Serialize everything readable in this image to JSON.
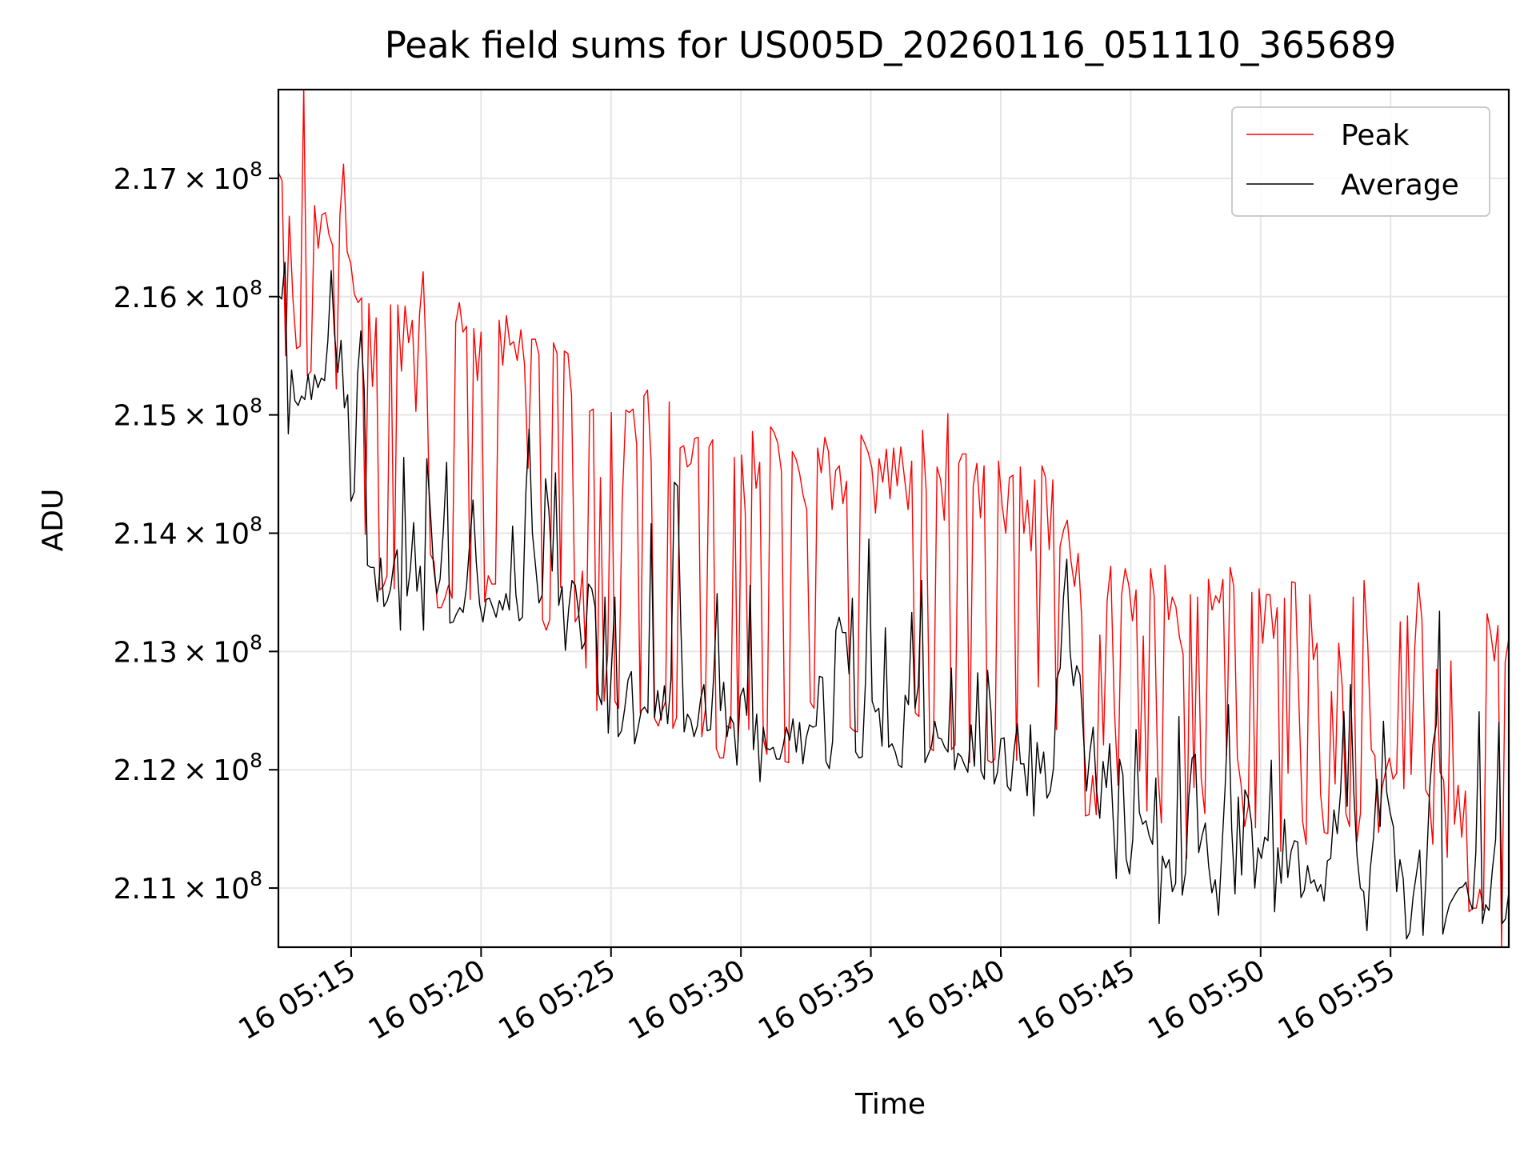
{
  "chart_data": {
    "type": "line",
    "title": "Peak field sums for US005D_20260116_051110_365689",
    "xlabel": "Time",
    "ylabel": "ADU",
    "x_start_minutes": 12.2,
    "x_end_minutes": 59.55,
    "xlim_minutes": [
      12.2,
      59.55
    ],
    "ylim": [
      210500000,
      217750000
    ],
    "y_ticks": [
      {
        "value": 211000000,
        "mantissa": "2.11",
        "exp": "8"
      },
      {
        "value": 212000000,
        "mantissa": "2.12",
        "exp": "8"
      },
      {
        "value": 213000000,
        "mantissa": "2.13",
        "exp": "8"
      },
      {
        "value": 214000000,
        "mantissa": "2.14",
        "exp": "8"
      },
      {
        "value": 215000000,
        "mantissa": "2.15",
        "exp": "8"
      },
      {
        "value": 216000000,
        "mantissa": "2.16",
        "exp": "8"
      },
      {
        "value": 217000000,
        "mantissa": "2.17",
        "exp": "8"
      }
    ],
    "x_ticks": [
      {
        "minutes": 15,
        "label": "16 05:15"
      },
      {
        "minutes": 20,
        "label": "16 05:20"
      },
      {
        "minutes": 25,
        "label": "16 05:25"
      },
      {
        "minutes": 30,
        "label": "16 05:30"
      },
      {
        "minutes": 35,
        "label": "16 05:35"
      },
      {
        "minutes": 40,
        "label": "16 05:40"
      },
      {
        "minutes": 45,
        "label": "16 05:45"
      },
      {
        "minutes": 50,
        "label": "16 05:50"
      },
      {
        "minutes": 55,
        "label": "16 05:55"
      }
    ],
    "legend_position": "top-right",
    "series": [
      {
        "name": "Peak",
        "color": "#ff0000",
        "values": [
          217.05,
          216.98,
          215.5,
          216.68,
          215.99,
          215.56,
          215.58,
          217.77,
          215.33,
          215.37,
          216.77,
          216.41,
          216.69,
          216.71,
          216.52,
          216.43,
          215.22,
          216.69,
          217.12,
          216.38,
          216.28,
          216.02,
          215.95,
          215.99,
          213.99,
          215.94,
          215.24,
          215.82,
          213.52,
          213.55,
          213.64,
          215.93,
          213.53,
          215.93,
          215.37,
          215.92,
          215.61,
          215.8,
          215.03,
          215.85,
          216.21,
          215.34,
          213.82,
          213.76,
          213.37,
          213.37,
          213.45,
          213.56,
          213.45,
          215.78,
          215.95,
          215.7,
          215.75,
          213.44,
          215.73,
          215.29,
          215.7,
          213.42,
          213.64,
          213.57,
          213.57,
          215.8,
          215.42,
          215.84,
          215.59,
          215.62,
          215.46,
          215.72,
          215.43,
          214.55,
          215.64,
          215.64,
          215.51,
          213.27,
          213.18,
          213.27,
          215.61,
          215.52,
          213.54,
          215.54,
          215.52,
          215.17,
          213.25,
          213.31,
          213.68,
          212.86,
          215.03,
          215.05,
          212.5,
          214.47,
          212.58,
          212.97,
          215.02,
          212.58,
          212.52,
          214.26,
          215.04,
          215.02,
          215.05,
          214.75,
          212.48,
          215.16,
          215.21,
          214.61,
          212.43,
          212.37,
          212.49,
          212.58,
          215.11,
          212.35,
          212.44,
          214.72,
          214.74,
          214.56,
          214.59,
          214.8,
          214.81,
          212.28,
          212.51,
          214.73,
          214.79,
          212.18,
          212.1,
          212.1,
          212.37,
          212.35,
          214.64,
          212.23,
          214.66,
          214.18,
          212.34,
          214.86,
          214.38,
          214.6,
          212.26,
          212.13,
          214.9,
          214.85,
          214.76,
          214.52,
          212.07,
          212.06,
          214.69,
          214.63,
          214.51,
          214.32,
          214.2,
          212.57,
          212.52,
          214.72,
          214.51,
          214.81,
          214.69,
          214.2,
          214.53,
          214.57,
          214.25,
          214.44,
          212.36,
          212.33,
          212.32,
          214.83,
          214.76,
          214.68,
          214.55,
          214.17,
          214.63,
          214.43,
          214.71,
          214.29,
          214.72,
          214.4,
          214.73,
          214.47,
          214.2,
          214.61,
          212.48,
          212.45,
          214.87,
          214.36,
          212.19,
          212.16,
          214.56,
          214.45,
          214.11,
          215.01,
          212.17,
          212.21,
          214.59,
          214.67,
          214.67,
          212.06,
          214.4,
          214.59,
          214.13,
          214.57,
          212.08,
          212.06,
          212.09,
          214.61,
          214.23,
          214.0,
          214.47,
          214.49,
          212.08,
          214.56,
          214.0,
          214.28,
          213.85,
          214.45,
          212.7,
          214.57,
          214.47,
          213.86,
          214.45,
          212.34,
          213.89,
          214.03,
          214.11,
          213.77,
          213.55,
          213.83,
          213.27,
          211.61,
          211.62,
          211.95,
          211.62,
          213.14,
          212.21,
          213.43,
          213.72,
          212.52,
          211.87,
          213.48,
          213.7,
          213.56,
          213.26,
          213.52,
          211.99,
          213.13,
          211.65,
          213.7,
          213.47,
          211.98,
          211.55,
          213.73,
          213.27,
          213.46,
          213.38,
          213.12,
          212.98,
          211.25,
          213.48,
          211.85,
          213.46,
          211.93,
          211.63,
          213.61,
          213.35,
          213.47,
          213.41,
          213.61,
          212.12,
          213.71,
          213.55,
          212.1,
          211.88,
          211.52,
          211.69,
          213.5,
          211.51,
          213.53,
          213.07,
          213.48,
          213.48,
          213.11,
          213.37,
          211.31,
          213.45,
          211.97,
          213.59,
          213.58,
          212.57,
          211.57,
          211.37,
          213.48,
          212.93,
          213.07,
          211.79,
          211.47,
          211.46,
          212.66,
          211.88,
          213.07,
          212.69,
          211.63,
          211.52,
          213.46,
          211.39,
          211.63,
          213.6,
          213.08,
          212.17,
          212.12,
          211.47,
          211.85,
          211.99,
          212.1,
          211.92,
          211.97,
          213.25,
          211.84,
          213.3,
          211.96,
          213.02,
          213.58,
          213.27,
          211.83,
          211.77,
          211.37,
          212.85,
          211.98,
          211.91,
          211.26,
          212.92,
          211.54,
          211.87,
          211.43,
          211.82,
          210.8,
          210.83,
          210.83,
          210.99,
          210.81,
          213.32,
          213.16,
          212.92,
          213.22,
          210.5,
          212.91,
          213.11
        ]
      },
      {
        "name": "Average",
        "color": "#000000",
        "values": [
          216.01,
          215.98,
          216.29,
          214.84,
          215.38,
          215.12,
          215.08,
          215.16,
          215.13,
          215.34,
          215.13,
          215.34,
          215.23,
          215.31,
          215.29,
          215.63,
          216.22,
          215.69,
          215.36,
          215.63,
          215.06,
          215.17,
          214.27,
          214.35,
          215.34,
          215.71,
          215.22,
          213.73,
          213.71,
          213.71,
          213.42,
          213.79,
          213.38,
          213.43,
          213.53,
          213.75,
          213.86,
          213.18,
          214.64,
          213.47,
          213.69,
          214.09,
          213.51,
          213.72,
          213.18,
          214.63,
          214.22,
          213.73,
          213.49,
          213.61,
          214.02,
          214.6,
          213.24,
          213.25,
          213.32,
          213.37,
          213.33,
          213.54,
          213.92,
          214.28,
          213.75,
          213.4,
          213.25,
          213.44,
          213.45,
          213.37,
          213.29,
          213.43,
          213.35,
          213.49,
          213.35,
          214.06,
          213.48,
          213.26,
          213.29,
          214.33,
          214.88,
          214.0,
          213.71,
          213.41,
          213.48,
          214.46,
          214.19,
          213.68,
          214.51,
          213.39,
          213.55,
          213.01,
          213.36,
          213.6,
          213.56,
          213.33,
          213.02,
          213.08,
          213.57,
          213.53,
          213.38,
          212.64,
          212.55,
          213.46,
          212.31,
          212.87,
          213.46,
          212.28,
          212.33,
          212.52,
          212.76,
          212.83,
          212.22,
          212.35,
          212.5,
          212.53,
          212.48,
          214.08,
          212.44,
          212.67,
          212.42,
          212.71,
          212.39,
          212.76,
          214.43,
          214.4,
          213.22,
          212.32,
          212.47,
          212.42,
          212.28,
          212.37,
          212.6,
          212.72,
          212.33,
          212.34,
          212.81,
          213.49,
          212.5,
          212.74,
          212.28,
          212.45,
          212.39,
          212.04,
          212.62,
          212.69,
          212.46,
          213.56,
          212.17,
          212.47,
          211.9,
          212.36,
          212.18,
          212.17,
          212.19,
          212.09,
          212.09,
          212.2,
          212.36,
          212.25,
          212.43,
          212.15,
          212.4,
          212.05,
          212.27,
          212.38,
          212.36,
          212.37,
          212.79,
          212.78,
          212.07,
          212.01,
          212.24,
          213.18,
          213.29,
          213.16,
          213.16,
          212.81,
          213.45,
          212.15,
          212.1,
          212.11,
          212.76,
          213.95,
          212.58,
          212.49,
          212.52,
          212.2,
          213.2,
          212.19,
          212.22,
          212.15,
          212.04,
          212.02,
          212.63,
          212.55,
          213.33,
          212.52,
          212.71,
          213.6,
          212.06,
          212.13,
          212.2,
          212.41,
          212.27,
          212.26,
          212.19,
          212.15,
          212.86,
          212.0,
          212.14,
          212.11,
          212.04,
          211.98,
          212.38,
          212.03,
          212.82,
          211.99,
          211.92,
          212.84,
          212.5,
          211.88,
          211.98,
          212.26,
          212.27,
          211.86,
          211.82,
          212.16,
          212.39,
          212.05,
          212.05,
          211.78,
          212.38,
          211.61,
          212.23,
          211.97,
          212.15,
          211.76,
          211.82,
          212.02,
          212.77,
          212.86,
          213.46,
          213.78,
          213.0,
          212.71,
          212.88,
          212.8,
          212.32,
          211.82,
          212.15,
          212.36,
          211.83,
          211.59,
          212.07,
          211.85,
          212.22,
          211.62,
          211.08,
          212.09,
          211.96,
          211.25,
          211.12,
          211.41,
          212.34,
          211.64,
          211.54,
          211.57,
          211.44,
          211.37,
          211.93,
          210.7,
          211.27,
          211.17,
          211.24,
          210.97,
          211.04,
          212.45,
          210.94,
          211.13,
          211.77,
          212.1,
          212.13,
          211.3,
          211.44,
          211.55,
          211.19,
          210.96,
          211.07,
          210.77,
          211.31,
          211.85,
          212.55,
          211.5,
          210.95,
          211.77,
          211.11,
          211.83,
          211.76,
          211.55,
          211.0,
          211.34,
          211.25,
          211.43,
          211.4,
          212.08,
          210.8,
          211.34,
          211.04,
          211.58,
          211.09,
          211.31,
          211.4,
          211.39,
          210.92,
          210.98,
          211.19,
          211.04,
          211.07,
          210.97,
          211.03,
          210.89,
          211.23,
          211.25,
          211.66,
          211.46,
          211.81,
          212.49,
          211.69,
          212.72,
          211.82,
          211.27,
          211.0,
          210.97,
          210.64,
          211.16,
          211.43,
          211.92,
          211.52,
          212.41,
          211.81,
          211.64,
          211.52,
          210.97,
          211.24,
          211.08,
          210.57,
          210.63,
          210.93,
          211.12,
          211.32,
          210.6,
          211.15,
          211.83,
          212.21,
          212.38,
          213.34,
          210.61,
          210.75,
          210.86,
          210.91,
          210.96,
          211.0,
          211.01,
          211.05,
          210.9,
          210.82,
          211.3,
          212.49,
          210.7,
          210.86,
          210.81,
          211.15,
          211.41,
          212.4,
          210.7,
          210.74,
          210.96
        ]
      }
    ]
  }
}
